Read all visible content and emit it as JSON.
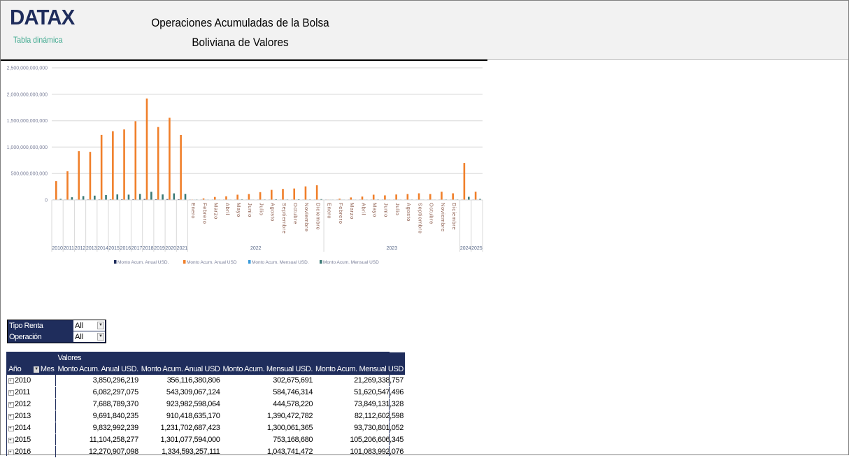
{
  "header": {
    "logo": "DATAX",
    "subtitle": "Tabla dinámica",
    "title_line1": "Operaciones Acumuladas de la Bolsa",
    "title_line2": "Boliviana de Valores"
  },
  "filters": [
    {
      "label": "Tipo Renta",
      "value": "All"
    },
    {
      "label": "Operación",
      "value": "All"
    }
  ],
  "pivot": {
    "valores_label": "Valores",
    "row_header": "Año",
    "col_header": "Mes",
    "columns": [
      "Monto Acum. Anual USD.",
      "Monto Acum. Anual USD",
      "Monto Acum. Mensual USD.",
      "Monto Acum. Mensual USD"
    ],
    "rows": [
      {
        "year": "2010",
        "values": [
          "3,850,296,219",
          "356,116,380,806",
          "302,675,691",
          "21,269,338,757"
        ]
      },
      {
        "year": "2011",
        "values": [
          "6,082,297,075",
          "543,309,067,124",
          "584,746,314",
          "51,620,547,496"
        ]
      },
      {
        "year": "2012",
        "values": [
          "7,688,789,370",
          "923,982,598,064",
          "444,578,220",
          "73,849,131,328"
        ]
      },
      {
        "year": "2013",
        "values": [
          "9,691,840,235",
          "910,418,635,170",
          "1,390,472,782",
          "82,112,602,598"
        ]
      },
      {
        "year": "2014",
        "values": [
          "9,832,992,239",
          "1,231,702,687,423",
          "1,300,061,365",
          "93,730,801,052"
        ]
      },
      {
        "year": "2015",
        "values": [
          "11,104,258,277",
          "1,301,077,594,000",
          "753,168,680",
          "105,206,606,345"
        ]
      },
      {
        "year": "2016",
        "values": [
          "12,270,907,098",
          "1,334,593,257,111",
          "1,043,741,472",
          "101,083,992,076"
        ]
      }
    ]
  },
  "chart_data": {
    "type": "bar",
    "ylim": [
      0,
      2500000000000
    ],
    "yticks": [
      "0",
      "500,000,000,000",
      "1,000,000,000,000",
      "1,500,000,000,000",
      "2,000,000,000,000",
      "2,500,000,000,000"
    ],
    "grid": true,
    "legend_position": "bottom",
    "categories": [
      {
        "label": "2010"
      },
      {
        "label": "2011"
      },
      {
        "label": "2012"
      },
      {
        "label": "2013"
      },
      {
        "label": "2014"
      },
      {
        "label": "2015"
      },
      {
        "label": "2016"
      },
      {
        "label": "2017"
      },
      {
        "label": "2018"
      },
      {
        "label": "2019"
      },
      {
        "label": "2020"
      },
      {
        "label": "2021"
      },
      {
        "label": "Enero",
        "group": "2022"
      },
      {
        "label": "Febrero",
        "group": "2022"
      },
      {
        "label": "Marzo",
        "group": "2022"
      },
      {
        "label": "Abril",
        "group": "2022"
      },
      {
        "label": "Mayo",
        "group": "2022"
      },
      {
        "label": "Junio",
        "group": "2022"
      },
      {
        "label": "Julio",
        "group": "2022"
      },
      {
        "label": "Agosto",
        "group": "2022"
      },
      {
        "label": "Septiembre",
        "group": "2022"
      },
      {
        "label": "Octubre",
        "group": "2022"
      },
      {
        "label": "Noviembre",
        "group": "2022"
      },
      {
        "label": "Diciembre",
        "group": "2022"
      },
      {
        "label": "Enero",
        "group": "2023"
      },
      {
        "label": "Febrero",
        "group": "2023"
      },
      {
        "label": "Marzo",
        "group": "2023"
      },
      {
        "label": "Abril",
        "group": "2023"
      },
      {
        "label": "Mayo",
        "group": "2023"
      },
      {
        "label": "Junio",
        "group": "2023"
      },
      {
        "label": "Julio",
        "group": "2023"
      },
      {
        "label": "Agosto",
        "group": "2023"
      },
      {
        "label": "Septiembre",
        "group": "2023"
      },
      {
        "label": "Octubre",
        "group": "2023"
      },
      {
        "label": "Noviembre",
        "group": "2023"
      },
      {
        "label": "Diciembre",
        "group": "2023"
      },
      {
        "label": "2024"
      },
      {
        "label": "2025"
      }
    ],
    "groups": [
      "2022",
      "2023"
    ],
    "series": [
      {
        "name": "Monto Acum. Anual USD.",
        "color": "#1f2d5c",
        "values": [
          3850296219,
          6082297075,
          7688789370,
          9691840235,
          9832992239,
          11104258277,
          12270907098,
          13000000000,
          18000000000,
          14000000000,
          16000000000,
          13000000000,
          1000000000,
          1000000000,
          1000000000,
          1000000000,
          1000000000,
          1000000000,
          1000000000,
          1000000000,
          1000000000,
          1000000000,
          2000000000,
          2000000000,
          1000000000,
          1000000000,
          1000000000,
          1000000000,
          1000000000,
          1000000000,
          1000000000,
          1000000000,
          1000000000,
          1000000000,
          2000000000,
          2000000000,
          8000000000,
          2000000000
        ]
      },
      {
        "name": "Monto Acum. Anual USD",
        "color": "#f07f2a",
        "values": [
          356116380806,
          543309067124,
          923982598064,
          910418635170,
          1231702687423,
          1301077594000,
          1334593257111,
          1490000000000,
          1920000000000,
          1380000000000,
          1555000000000,
          1230000000000,
          9000000000,
          30000000000,
          57000000000,
          70000000000,
          100000000000,
          113000000000,
          148000000000,
          191000000000,
          209000000000,
          217000000000,
          257000000000,
          278000000000,
          5000000000,
          26000000000,
          48000000000,
          65000000000,
          100000000000,
          87000000000,
          104000000000,
          113000000000,
          126000000000,
          113000000000,
          157000000000,
          126000000000,
          700000000000,
          157000000000
        ]
      },
      {
        "name": "Monto Acum. Mensual USD.",
        "color": "#3a9ad9",
        "values": [
          302675691,
          584746314,
          444578220,
          1390472782,
          1300061365,
          753168680,
          1043741472,
          1200000000,
          1500000000,
          1100000000,
          1300000000,
          1100000000,
          500000000,
          500000000,
          500000000,
          500000000,
          500000000,
          500000000,
          500000000,
          500000000,
          500000000,
          500000000,
          500000000,
          500000000,
          500000000,
          500000000,
          500000000,
          500000000,
          500000000,
          500000000,
          500000000,
          500000000,
          500000000,
          500000000,
          500000000,
          500000000,
          800000000,
          500000000
        ]
      },
      {
        "name": "Monto Acum. Mensual USD",
        "color": "#3c7a76",
        "values": [
          21269338757,
          51620547496,
          73849131328,
          82112602598,
          93730801052,
          105206606345,
          101083992076,
          115000000000,
          155000000000,
          105000000000,
          125000000000,
          115000000000,
          9000000000,
          5000000000,
          6000000000,
          8000000000,
          12000000000,
          6000000000,
          10000000000,
          14000000000,
          10000000000,
          14000000000,
          10000000000,
          16000000000,
          5000000000,
          5000000000,
          6000000000,
          6000000000,
          10000000000,
          6000000000,
          8000000000,
          9000000000,
          8000000000,
          8000000000,
          10000000000,
          10000000000,
          60000000000,
          20000000000
        ]
      }
    ]
  }
}
